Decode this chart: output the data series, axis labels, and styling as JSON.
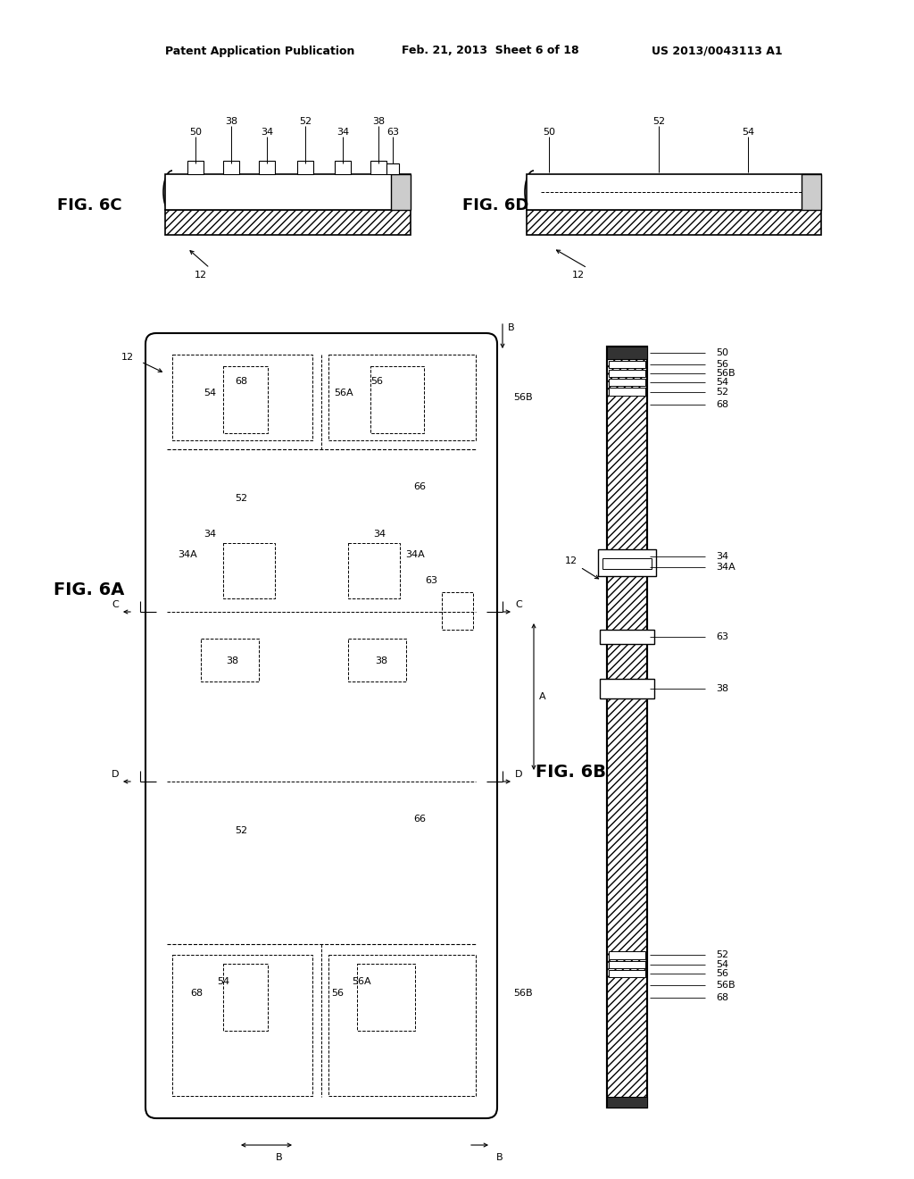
{
  "header_left": "Patent Application Publication",
  "header_mid": "Feb. 21, 2013  Sheet 6 of 18",
  "header_right": "US 2013/0043113 A1",
  "bg": "#ffffff"
}
